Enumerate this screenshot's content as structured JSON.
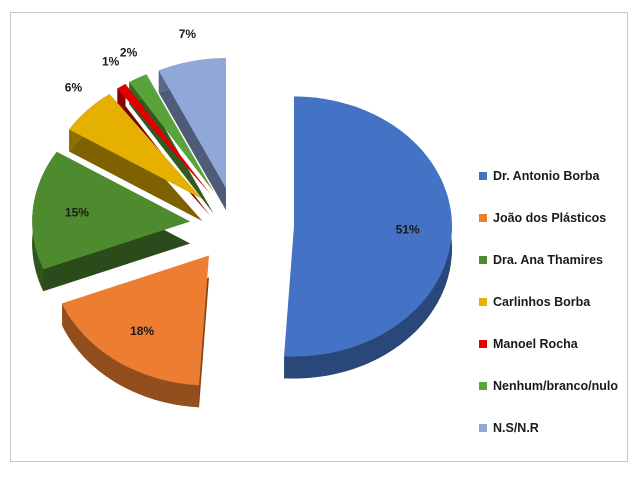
{
  "chart_data": {
    "type": "pie",
    "style": "3d-exploded",
    "categories": [
      "Dr. Antonio Borba",
      "João dos Plásticos",
      "Dra. Ana Thamires",
      "Carlinhos Borba",
      "Manoel Rocha",
      "Nenhum/branco/nulo",
      "N.S/N.R"
    ],
    "values": [
      51,
      18,
      15,
      6,
      1,
      2,
      7
    ],
    "labels": [
      "51%",
      "18%",
      "15%",
      "6%",
      "1%",
      "2%",
      "7%"
    ],
    "colors": [
      "#4472c4",
      "#ed7d31",
      "#4e8b2f",
      "#e5b000",
      "#e00000",
      "#5aa23a",
      "#8fa8d8"
    ],
    "legend_position": "right"
  }
}
